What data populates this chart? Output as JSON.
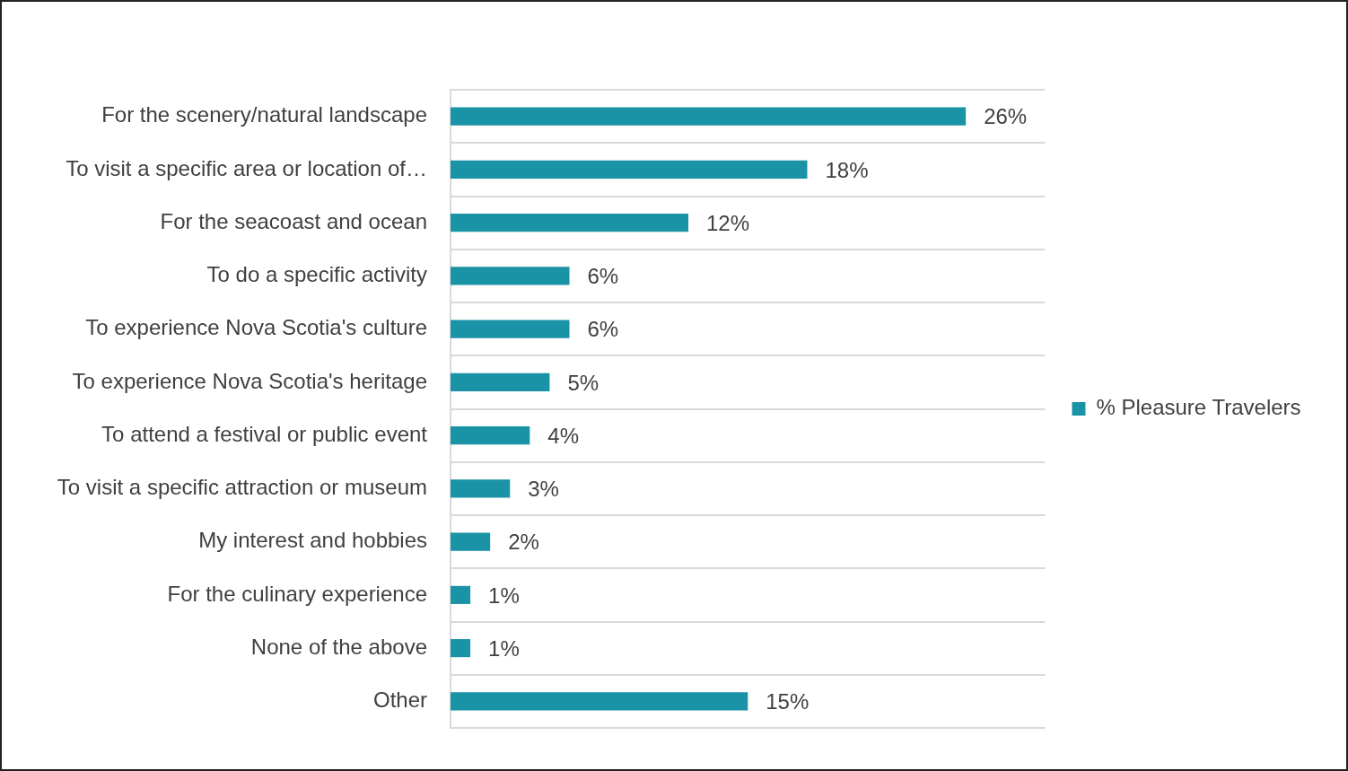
{
  "chart_data": {
    "type": "bar",
    "orientation": "horizontal",
    "categories": [
      "For the scenery/natural landscape",
      "To visit a specific area or location of…",
      "For the seacoast and ocean",
      "To do a specific activity",
      "To experience Nova Scotia's culture",
      "To experience Nova Scotia's heritage",
      "To attend a festival or public event",
      "To visit a specific attraction or museum",
      "My interest and hobbies",
      "For the culinary experience",
      "None of the above",
      "Other"
    ],
    "series": [
      {
        "name": "% Pleasure Travelers",
        "color": "#1a93a6",
        "values": [
          26,
          18,
          12,
          6,
          6,
          5,
          4,
          3,
          2,
          1,
          1,
          15
        ],
        "value_labels": [
          "26%",
          "18%",
          "12%",
          "6%",
          "6%",
          "5%",
          "4%",
          "3%",
          "2%",
          "1%",
          "1%",
          "15%"
        ]
      }
    ],
    "grid": "y",
    "legend": "right"
  }
}
